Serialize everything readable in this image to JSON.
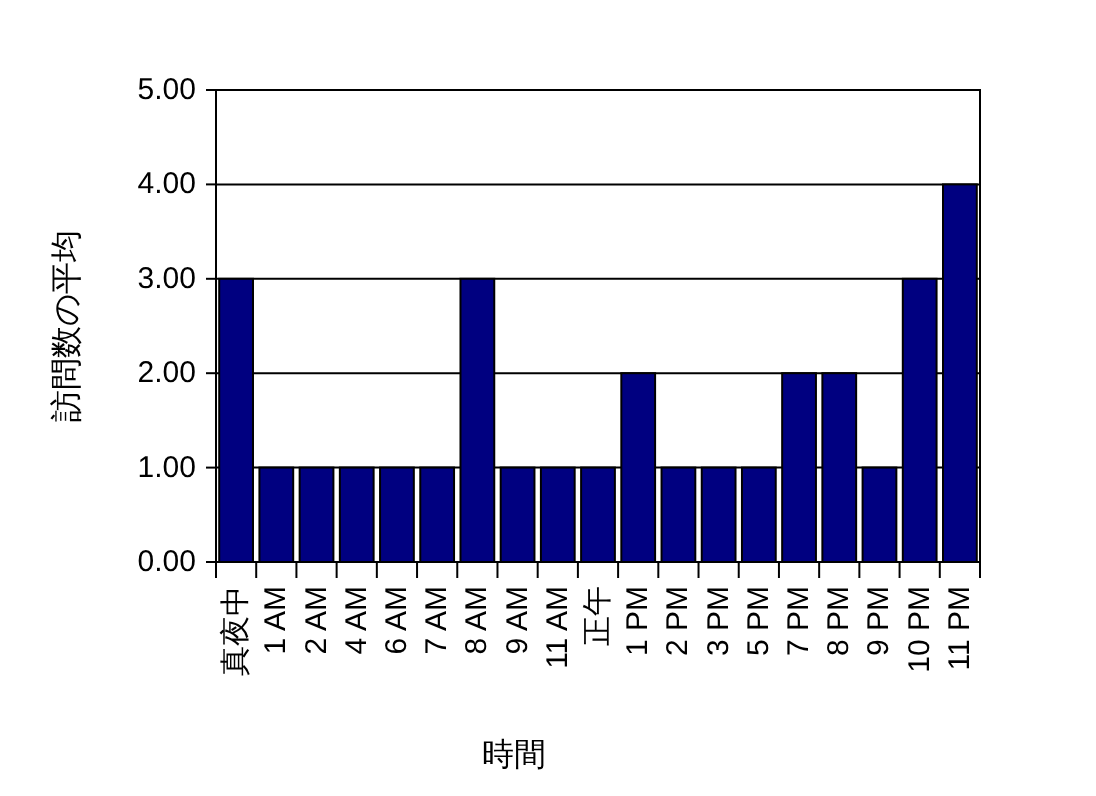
{
  "chart_data": {
    "type": "bar",
    "xlabel": "時間",
    "ylabel": "訪問数の平均",
    "categories": [
      "真夜中",
      "1 AM",
      "2 AM",
      "4 AM",
      "6 AM",
      "7 AM",
      "8 AM",
      "9 AM",
      "11 AM",
      "正午",
      "1 PM",
      "2 PM",
      "3 PM",
      "5 PM",
      "7 PM",
      "8 PM",
      "9 PM",
      "10 PM",
      "11 PM"
    ],
    "values": [
      3,
      1,
      1,
      1,
      1,
      1,
      3,
      1,
      1,
      1,
      2,
      1,
      1,
      1,
      2,
      2,
      1,
      3,
      4
    ],
    "color": "#000080",
    "ylim": [
      0,
      5
    ],
    "yticks": [
      {
        "value": 0,
        "label": "0.00"
      },
      {
        "value": 1,
        "label": "1.00"
      },
      {
        "value": 2,
        "label": "2.00"
      },
      {
        "value": 3,
        "label": "3.00"
      },
      {
        "value": 4,
        "label": "4.00"
      },
      {
        "value": 5,
        "label": "5.00"
      }
    ],
    "grid": "y"
  }
}
